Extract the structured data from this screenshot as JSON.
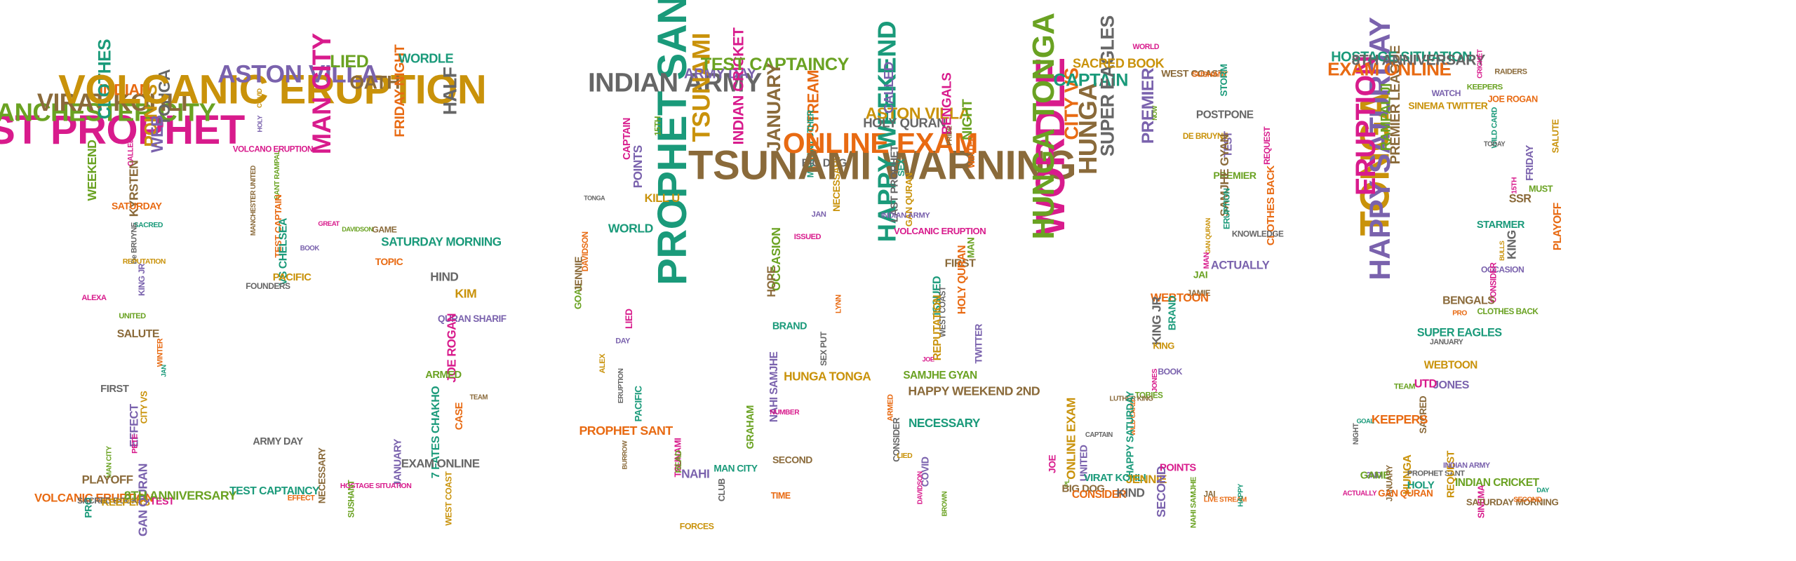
{
  "palette": {
    "magenta": "#d81b8c",
    "orange": "#e86a12",
    "amber": "#c9920a",
    "green": "#6aa222",
    "teal": "#1a9a7a",
    "purple": "#7a62ad",
    "brown": "#8a6a3a",
    "gray": "#666666"
  },
  "digits": [
    {
      "char": "1",
      "words": [
        "LAST PROPHET",
        "MANCHESTER CITY",
        "VIRAT KOHLI",
        "INDIAN",
        "CLOTHES",
        "TONGA",
        "POINTS",
        "WEB",
        "CALLED",
        "WEEKEND",
        "KYRSTEN",
        "SATURDAY",
        "SACRED",
        "De BRUYNE",
        "REPUTATION",
        "KING JR",
        "ALEXA",
        "UNITED",
        "SALUTE",
        "WINTER",
        "JAN",
        "FIRST",
        "CITY VS",
        "EFFECT",
        "PETE",
        "MAN CITY",
        "PLAYOFF",
        "VOLCANIC ERUPTION",
        "PRO",
        "SACRED BOOK",
        "KEEPERS",
        "GAN QURAN",
        "TEST",
        "8TH ANNIVERSARY"
      ]
    },
    {
      "char": "5",
      "words": [
        "VOLCANIC ERUPTION",
        "ASTON VILLA",
        "MAN CITY",
        "LIED",
        "OATH",
        "FRIDAY NIGHT",
        "WORDLE",
        "HALF",
        "COVID",
        "HOLY",
        "VOLCANO ERUPTION",
        "SANT RAMPAL",
        "MANCHESTER UNITED",
        "TEST CAPTAIN",
        "VS CHELSEA",
        "FOUNDERS",
        "PACIFIC",
        "BOOK",
        "GREAT",
        "DAVIDSON",
        "GAME",
        "TOPIC",
        "SATURDAY MORNING",
        "HIND",
        "KIM",
        "QURAN SHARIF",
        "JOE ROGAN",
        "ARMED",
        "TEAM",
        "CASE",
        "7 FATES CHAKHO",
        "EXAM ONLINE",
        "WEST COAST",
        "JANUARY",
        "HOSTAGE SITUATION",
        "SUSHANT",
        "NECESSARY",
        "EFFECT",
        "TEST CAPTAINCY",
        "ARMY DAY"
      ]
    },
    {
      "char": "0",
      "words": [
        "PROPHET SANT",
        "INDIAN ARMY",
        "TSUNAMI",
        "ARMY DAY",
        "INDIAN CRICKET",
        "TEST CAPTAINCY",
        "JANUARY",
        "LIVE STREAM",
        "MARTIN LUTHER",
        "BIG DOG",
        "NECESSARY",
        "JAN",
        "ISSUED",
        "OCCASION",
        "HOPE",
        "LYNN",
        "BRAND",
        "SEX PUT",
        "HUNGA TONGA",
        "NAHI SAMJHE",
        "NUMBER",
        "GRAHAM",
        "SECOND",
        "TIME",
        "MAN CITY",
        "CLUB",
        "FORCES",
        "NAHI",
        "TSUNAMI",
        "READ",
        "BURROW",
        "PROPHET SANT",
        "PACIFIC",
        "ERUPTION",
        "ALEX",
        "DAY",
        "LIED",
        "GOAL",
        "JENNIE",
        "DAVIDSON",
        "WORLD",
        "TONGA",
        "KILL U",
        "POINTS",
        "CAPTAIN",
        "15TH"
      ]
    },
    {
      "char": "1",
      "words": [
        "TSUNAMI WARNING",
        "ONLINE EXAM",
        "HAPPY WEEKEND",
        "HOLY QURAN",
        "ASTON VILLA",
        "CALLED",
        "BENGALS",
        "NIGHT",
        "PRIDE",
        "WINTER",
        "SEX",
        "LAST PROPHET",
        "GAN QURAN",
        "INDIAN ARMY",
        "VOLCANIC ERUPTION",
        "MAN",
        "FIRST",
        "HOLY QURAN",
        "ISSUED",
        "WEST COAST",
        "REPUTATION",
        "TWITTER",
        "JOE",
        "SAMJHE GYAN",
        "HAPPY WEEKEND 2ND",
        "ARMED",
        "NECESSARY",
        "CONSIDER",
        "LIED",
        "COVID",
        "DAVIDSON",
        "BROWN"
      ]
    },
    {
      "char": "2",
      "words": [
        "WORDLE",
        "HUNGA TONGA",
        "HUNGA",
        "CITY VS",
        "CAPTAIN",
        "SUPER EAGLES",
        "SACRED BOOK",
        "PREMIER",
        "WORLD",
        "NOW",
        "WEST COAST",
        "SUSHANT",
        "STORM",
        "POSTPONE",
        "DE BRUYNE",
        "TEST",
        "REQUEST",
        "PREMIER",
        "SAMJHE GYAN",
        "CLOTHES BACK",
        "ERUPTION",
        "KNOWLEDGE",
        "GAN QURAN",
        "ACTUALLY",
        "MAN",
        "JAI",
        "JAMIE",
        "WEBTOON",
        "BRAND",
        "KING JR",
        "KING",
        "BOOK",
        "JONES",
        "TOBIES",
        "LUTHER KING",
        "WILD CARD",
        "HAPPY SATURDAY",
        "CAPTAIN",
        "ONLINE EXAM",
        "UNITED",
        "JOE",
        "PL",
        "BIG DOG",
        "CONSIDER",
        "VIRAT KOHLI",
        "KIND",
        "JENNIE",
        "SECOND",
        "POINTS",
        "NAHI SAMJHE",
        "JAI",
        "LIVE STREAM",
        "HAPPY"
      ]
    },
    {
      "char": "2",
      "words": [
        "TONGA",
        "HAPPY SATURDAY",
        "ERUPTION",
        "RAMPAL JI",
        "PREMIER LEAGUE",
        "EXAM ONLINE",
        "HOSTAGE SITUATION",
        "8TH ANNIVERSARY",
        "SINEMA TWITTER",
        "WATCH",
        "CRICKET",
        "KEEPERS",
        "RAIDERS",
        "JOE ROGAN",
        "WILD CARD",
        "TODAY",
        "SALUTE",
        "FRIDAY",
        "15TH",
        "MUST",
        "SSR",
        "PLAYOFF",
        "STARMER",
        "KING",
        "BULLS",
        "OCCASION",
        "CONSIDER",
        "CLOTHES BACK",
        "BENGALS",
        "PRO",
        "SUPER EAGLES",
        "JANUARY",
        "WEBTOON",
        "JONES",
        "UTD",
        "TEAM",
        "SACRED",
        "KEEPERS",
        "GOAL",
        "NIGHT",
        "HUNGA",
        "2ND",
        "ACTUALLY",
        "GAME",
        "JANUARY",
        "GAN QURAN",
        "HOLY",
        "PROPHET SANT",
        "REQUEST",
        "INDIAN ARMY",
        "SINEMA",
        "INDIAN CRICKET",
        "SATURDAY MORNING",
        "SECOND",
        "DAY"
      ]
    }
  ]
}
